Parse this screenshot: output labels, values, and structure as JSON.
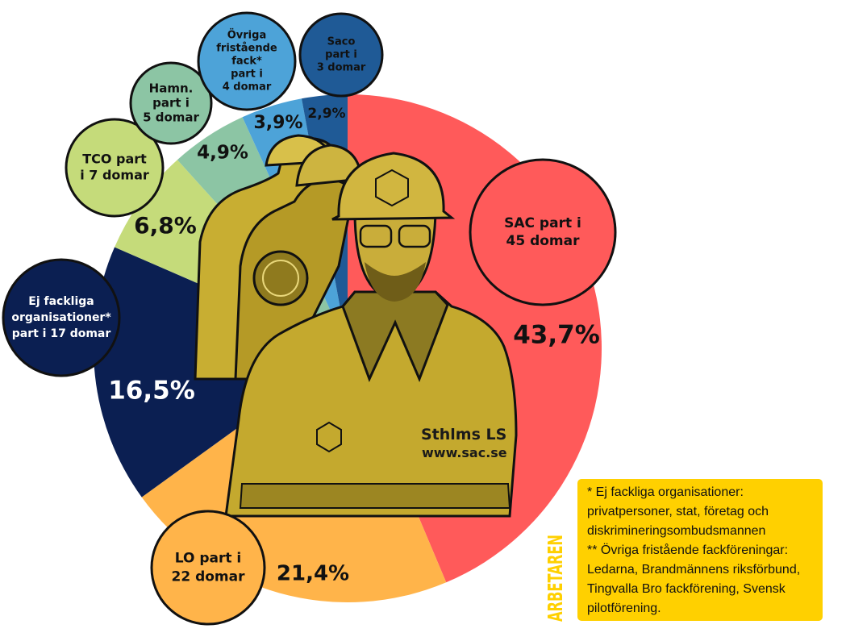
{
  "chart_data": {
    "type": "pie",
    "title": "",
    "slices": [
      {
        "label": "SAC part i 45 domar",
        "label_lines": [
          "SAC part i",
          "45 domar"
        ],
        "value": 43.7,
        "value_label": "43,7%",
        "color": "#ff5a5a",
        "bubble_text_color": "#111111",
        "value_text_color": "#111111"
      },
      {
        "label": "LO part i 22 domar",
        "label_lines": [
          "LO part i",
          "22 domar"
        ],
        "value": 21.4,
        "value_label": "21,4%",
        "color": "#ffb44a",
        "bubble_text_color": "#111111",
        "value_text_color": "#111111"
      },
      {
        "label": "Ej fackliga organisationer* part i 17 domar",
        "label_lines": [
          "Ej fackliga",
          "organisationer*",
          "part i 17 domar"
        ],
        "value": 16.5,
        "value_label": "16,5%",
        "color": "#0b1f52",
        "bubble_text_color": "#ffffff",
        "value_text_color": "#ffffff"
      },
      {
        "label": "TCO part i 7 domar",
        "label_lines": [
          "TCO part",
          "i 7 domar"
        ],
        "value": 6.8,
        "value_label": "6,8%",
        "color": "#c5db7a",
        "bubble_text_color": "#111111",
        "value_text_color": "#111111"
      },
      {
        "label": "Hamn. part i 5 domar",
        "label_lines": [
          "Hamn.",
          "part i",
          "5 domar"
        ],
        "value": 4.9,
        "value_label": "4,9%",
        "color": "#8cc5a4",
        "bubble_text_color": "#111111",
        "value_text_color": "#111111"
      },
      {
        "label": "Övriga fristående fack* part i 4 domar",
        "label_lines": [
          "Övriga",
          "fristående",
          "fack*",
          "part i",
          "4 domar"
        ],
        "value": 3.9,
        "value_label": "3,9%",
        "color": "#4da3d8",
        "bubble_text_color": "#111111",
        "value_text_color": "#111111"
      },
      {
        "label": "Saco part i 3 domar",
        "label_lines": [
          "Saco",
          "part i",
          "3 domar"
        ],
        "value": 2.9,
        "value_label": "2,9%",
        "color": "#1f5a96",
        "bubble_text_color": "#111111",
        "value_text_color": "#111111"
      }
    ],
    "start_angle": "12 o'clock",
    "direction": "clockwise",
    "center_image": "photo of construction worker in hi-vis vest and hard hat",
    "legend": "none"
  },
  "photo": {
    "vest_text_1": "Sthlms LS",
    "vest_text_2": "www.sac.se",
    "tint_color": "#cfb63a"
  },
  "footnote": {
    "lines": [
      "* Ej fackliga organisationer:",
      "privatpersoner, stat, företag och",
      "diskrimineringsombudsmannen",
      "** Övriga fristående fackföreningar:",
      "Ledarna, Brandmännens riksförbund,",
      "Tingvalla Bro fackförening, Svensk",
      "pilotförening."
    ],
    "background": "#ffd000"
  },
  "brand": {
    "text": "ARBETAREN",
    "color": "#ffd000"
  }
}
